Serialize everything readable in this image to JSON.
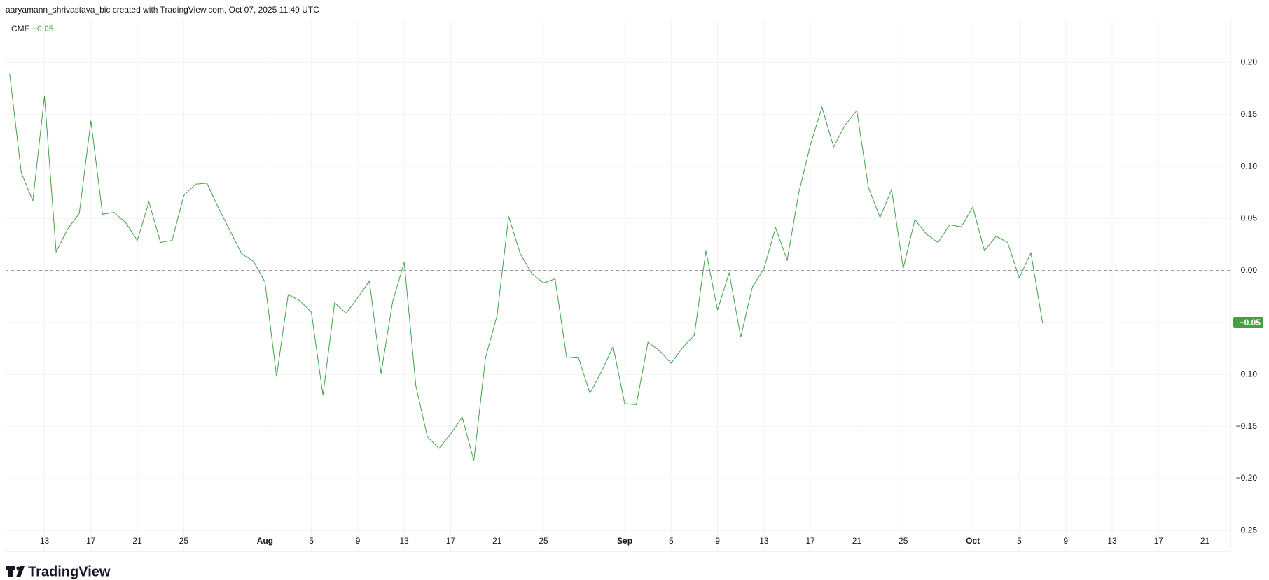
{
  "header": "aaryamann_shrivastava_bic created with TradingView.com, Oct 07, 2025 11:49 UTC",
  "watermark": "TradingView",
  "chart_data": {
    "type": "line",
    "x": [
      "2025-07-10",
      "2025-07-11",
      "2025-07-12",
      "2025-07-13",
      "2025-07-14",
      "2025-07-15",
      "2025-07-16",
      "2025-07-17",
      "2025-07-18",
      "2025-07-19",
      "2025-07-20",
      "2025-07-21",
      "2025-07-22",
      "2025-07-23",
      "2025-07-24",
      "2025-07-25",
      "2025-07-26",
      "2025-07-27",
      "2025-07-28",
      "2025-07-29",
      "2025-07-30",
      "2025-07-31",
      "2025-08-01",
      "2025-08-02",
      "2025-08-03",
      "2025-08-04",
      "2025-08-05",
      "2025-08-06",
      "2025-08-07",
      "2025-08-08",
      "2025-08-09",
      "2025-08-10",
      "2025-08-11",
      "2025-08-12",
      "2025-08-13",
      "2025-08-14",
      "2025-08-15",
      "2025-08-16",
      "2025-08-17",
      "2025-08-18",
      "2025-08-19",
      "2025-08-20",
      "2025-08-21",
      "2025-08-22",
      "2025-08-23",
      "2025-08-24",
      "2025-08-25",
      "2025-08-26",
      "2025-08-27",
      "2025-08-28",
      "2025-08-29",
      "2025-08-30",
      "2025-08-31",
      "2025-09-01",
      "2025-09-02",
      "2025-09-03",
      "2025-09-04",
      "2025-09-05",
      "2025-09-06",
      "2025-09-07",
      "2025-09-08",
      "2025-09-09",
      "2025-09-10",
      "2025-09-11",
      "2025-09-12",
      "2025-09-13",
      "2025-09-14",
      "2025-09-15",
      "2025-09-16",
      "2025-09-17",
      "2025-09-18",
      "2025-09-19",
      "2025-09-20",
      "2025-09-21",
      "2025-09-22",
      "2025-09-23",
      "2025-09-24",
      "2025-09-25",
      "2025-09-26",
      "2025-09-27",
      "2025-09-28",
      "2025-09-29",
      "2025-09-30",
      "2025-10-01",
      "2025-10-02",
      "2025-10-03",
      "2025-10-04",
      "2025-10-05",
      "2025-10-06",
      "2025-10-07"
    ],
    "series": [
      {
        "name": "CMF",
        "color": "#43a047",
        "values": [
          0.189,
          0.094,
          0.067,
          0.168,
          0.018,
          0.04,
          0.055,
          0.144,
          0.054,
          0.056,
          0.046,
          0.029,
          0.066,
          0.027,
          0.029,
          0.072,
          0.083,
          0.084,
          0.06,
          0.038,
          0.016,
          0.009,
          -0.011,
          -0.102,
          -0.023,
          -0.029,
          -0.04,
          -0.12,
          -0.031,
          -0.041,
          -0.026,
          -0.01,
          -0.099,
          -0.03,
          0.008,
          -0.111,
          -0.16,
          -0.171,
          -0.157,
          -0.141,
          -0.183,
          -0.084,
          -0.043,
          0.052,
          0.016,
          -0.003,
          -0.012,
          -0.008,
          -0.084,
          -0.083,
          -0.118,
          -0.097,
          -0.073,
          -0.128,
          -0.129,
          -0.069,
          -0.077,
          -0.089,
          -0.074,
          -0.062,
          0.019,
          -0.038,
          -0.002,
          -0.064,
          -0.016,
          0.002,
          0.041,
          0.01,
          0.075,
          0.121,
          0.157,
          0.119,
          0.14,
          0.154,
          0.08,
          0.051,
          0.078,
          0.002,
          0.049,
          0.035,
          0.027,
          0.044,
          0.042,
          0.061,
          0.019,
          0.033,
          0.027,
          -0.007,
          0.017,
          -0.05
        ]
      }
    ],
    "last_value_label": "−0.05",
    "hline": 0,
    "xlim": [
      "2025-07-10",
      "2025-10-23"
    ],
    "xticks": [
      {
        "value": "2025-07-13",
        "label": "13"
      },
      {
        "value": "2025-07-17",
        "label": "17"
      },
      {
        "value": "2025-07-21",
        "label": "21"
      },
      {
        "value": "2025-07-25",
        "label": "25"
      },
      {
        "value": "2025-08-01",
        "label": "Aug"
      },
      {
        "value": "2025-08-05",
        "label": "5"
      },
      {
        "value": "2025-08-09",
        "label": "9"
      },
      {
        "value": "2025-08-13",
        "label": "13"
      },
      {
        "value": "2025-08-17",
        "label": "17"
      },
      {
        "value": "2025-08-21",
        "label": "21"
      },
      {
        "value": "2025-08-25",
        "label": "25"
      },
      {
        "value": "2025-09-01",
        "label": "Sep"
      },
      {
        "value": "2025-09-05",
        "label": "5"
      },
      {
        "value": "2025-09-09",
        "label": "9"
      },
      {
        "value": "2025-09-13",
        "label": "13"
      },
      {
        "value": "2025-09-17",
        "label": "17"
      },
      {
        "value": "2025-09-21",
        "label": "21"
      },
      {
        "value": "2025-09-25",
        "label": "25"
      },
      {
        "value": "2025-10-01",
        "label": "Oct"
      },
      {
        "value": "2025-10-05",
        "label": "5"
      },
      {
        "value": "2025-10-09",
        "label": "9"
      },
      {
        "value": "2025-10-13",
        "label": "13"
      },
      {
        "value": "2025-10-17",
        "label": "17"
      },
      {
        "value": "2025-10-21",
        "label": "21"
      }
    ],
    "ylim": [
      -0.27,
      0.24
    ],
    "yticks": [
      {
        "value": 0.2,
        "label": "0.20"
      },
      {
        "value": 0.15,
        "label": "0.15"
      },
      {
        "value": 0.1,
        "label": "0.10"
      },
      {
        "value": 0.05,
        "label": "0.05"
      },
      {
        "value": 0,
        "label": "0.00"
      },
      {
        "value": -0.05,
        "label": "−0.05"
      },
      {
        "value": -0.1,
        "label": "−0.10"
      },
      {
        "value": -0.15,
        "label": "−0.15"
      },
      {
        "value": -0.2,
        "label": "−0.20"
      },
      {
        "value": -0.25,
        "label": "−0.25"
      }
    ],
    "grid": true
  }
}
